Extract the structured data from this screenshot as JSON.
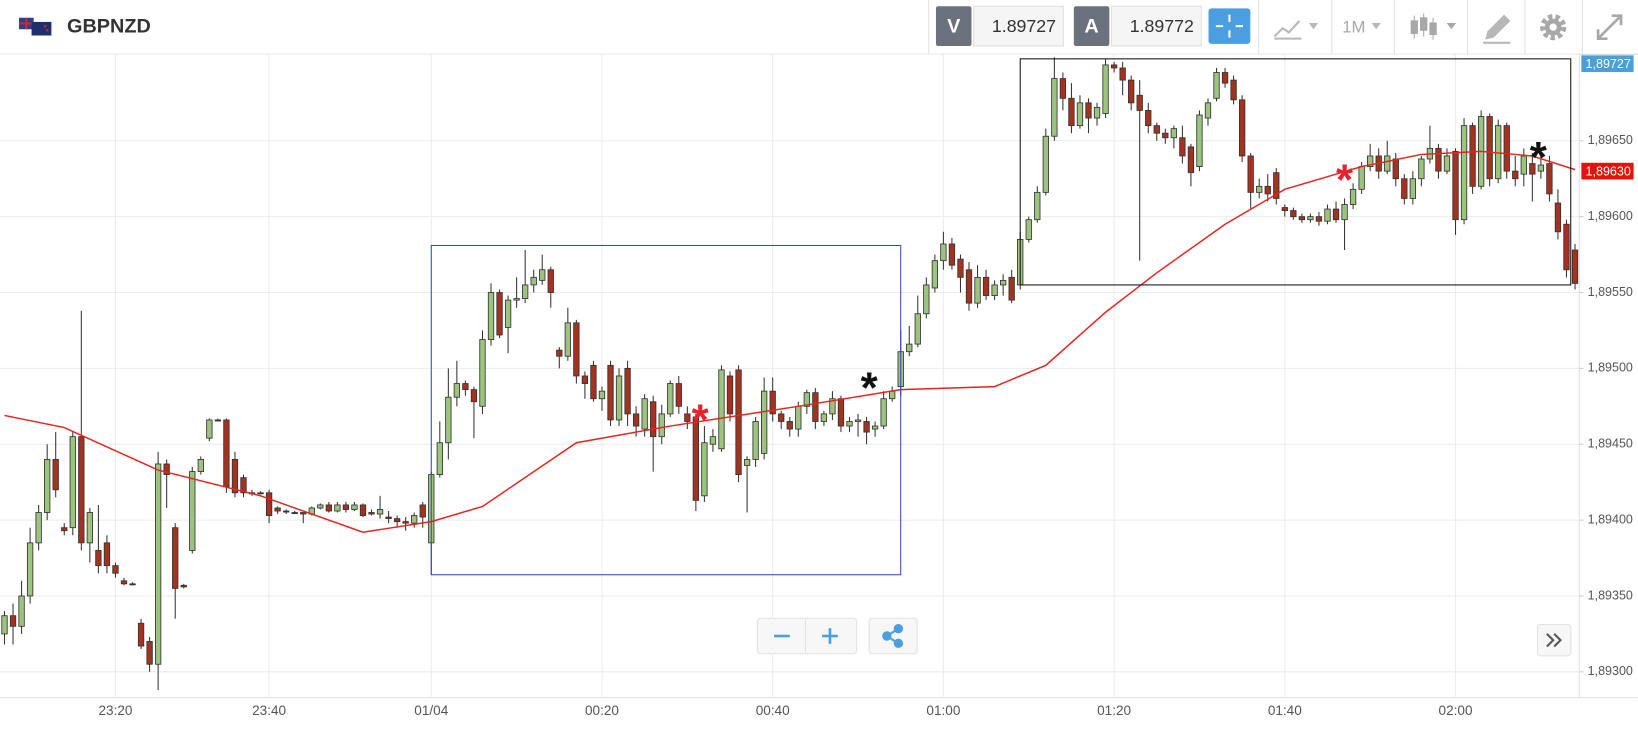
{
  "header": {
    "symbol": "GBPNZD",
    "sell_label": "V",
    "sell_price": 1.89727,
    "buy_label": "A",
    "buy_price": 1.89772,
    "timeframe": "1M"
  },
  "chart_data": {
    "type": "candlestick",
    "title": "GBPNZD",
    "xlim": [
      -0.5,
      184.5
    ],
    "xticks": [
      {
        "value": 13,
        "label": "23:20"
      },
      {
        "value": 31,
        "label": "23:40"
      },
      {
        "value": 50,
        "label": "01/04"
      },
      {
        "value": 70,
        "label": "00:20"
      },
      {
        "value": 90,
        "label": "00:40"
      },
      {
        "value": 110,
        "label": "01:00"
      },
      {
        "value": 130,
        "label": "01:20"
      },
      {
        "value": 150,
        "label": "01:40"
      },
      {
        "value": 170,
        "label": "02:00"
      }
    ],
    "ylim": [
      1.89283,
      1.89707
    ],
    "yticks": [
      {
        "value": 1.893,
        "label": "1,89300"
      },
      {
        "value": 1.8935,
        "label": "1,89350"
      },
      {
        "value": 1.894,
        "label": "1,89400"
      },
      {
        "value": 1.8945,
        "label": "1,89450"
      },
      {
        "value": 1.895,
        "label": "1,89500"
      },
      {
        "value": 1.8955,
        "label": "1,89550"
      },
      {
        "value": 1.896,
        "label": "1,89600"
      },
      {
        "value": 1.8965,
        "label": "1,89650"
      }
    ],
    "grid": true,
    "up_color": "#9cc47e",
    "down_color": "#a3321f",
    "open": [
      1.89325,
      1.89337,
      1.8933,
      1.8935,
      1.89385,
      1.89405,
      1.8944,
      1.89395,
      1.89395,
      1.89455,
      1.89385,
      1.8938,
      1.89385,
      1.8937,
      1.8936,
      1.89358,
      1.89332,
      1.8932,
      1.89305,
      1.89437,
      1.89395,
      1.89357,
      1.8938,
      1.89432,
      1.89454,
      1.89466,
      1.89466,
      1.8944,
      1.89428,
      1.89418,
      1.89418,
      1.89418,
      1.89408,
      1.89406,
      1.89405,
      1.89405,
      1.89404,
      1.89408,
      1.8941,
      1.89406,
      1.8941,
      1.89407,
      1.8941,
      1.89405,
      1.89404,
      1.89402,
      1.89401,
      1.89399,
      1.89398,
      1.8941,
      1.89385,
      1.8943,
      1.89451,
      1.89481,
      1.8949,
      1.89486,
      1.89475,
      1.89519,
      1.8955,
      1.89527,
      1.89545,
      1.89546,
      1.89555,
      1.89558,
      1.89565,
      1.89512,
      1.89508,
      1.8953,
      1.89495,
      1.89502,
      1.8948,
      1.89502,
      1.89466,
      1.895,
      1.8947,
      1.8946,
      1.89478,
      1.89455,
      1.8947,
      1.8949,
      1.8947,
      1.89468,
      1.89416,
      1.8945,
      1.89447,
      1.89495,
      1.89499,
      1.89436,
      1.8944,
      1.89444,
      1.89485,
      1.8947,
      1.89465,
      1.8946,
      1.89475,
      1.89484,
      1.89465,
      1.8947,
      1.8948,
      1.89462,
      1.89465,
      1.89465,
      1.8946,
      1.89462,
      1.8948,
      1.89488,
      1.89511,
      1.89516,
      1.89536,
      1.89553,
      1.89571,
      1.89582,
      1.89572,
      1.89565,
      1.89543,
      1.8956,
      1.89548,
      1.89555,
      1.8956,
      1.89555,
      1.89585,
      1.89598,
      1.89616,
      1.89653,
      1.89691,
      1.89678,
      1.8966,
      1.89675,
      1.89665,
      1.89668,
      1.897,
      1.89698,
      1.8969,
      1.8968,
      1.8967,
      1.8966,
      1.89655,
      1.89652,
      1.89652,
      1.89646,
      1.89633,
      1.89665,
      1.89678,
      1.89695,
      1.8969,
      1.89677,
      1.8964,
      1.89616,
      1.8962,
      1.89629,
      1.89606,
      1.89604,
      1.896,
      1.89598,
      1.896,
      1.89597,
      1.89605,
      1.89598,
      1.89608,
      1.89618,
      1.89633,
      1.8964,
      1.8963,
      1.89638,
      1.89625,
      1.89612,
      1.89625,
      1.89638,
      1.89645,
      1.8963,
      1.89643,
      1.89598,
      1.8966,
      1.8962,
      1.89666,
      1.89625,
      1.8966,
      1.8963,
      1.89628,
      1.89635,
      1.8963,
      1.89635,
      1.89609,
      1.89595,
      1.89578
    ],
    "high": [
      1.8934,
      1.89345,
      1.8936,
      1.89395,
      1.8941,
      1.8945,
      1.89458,
      1.89398,
      1.89458,
      1.89538,
      1.89408,
      1.8941,
      1.8939,
      1.89372,
      1.89362,
      1.89359,
      1.89335,
      1.89323,
      1.89445,
      1.8944,
      1.89398,
      1.89358,
      1.89435,
      1.89442,
      1.89467,
      1.89467,
      1.89467,
      1.89445,
      1.8943,
      1.8942,
      1.89419,
      1.8942,
      1.89409,
      1.89407,
      1.89406,
      1.89405,
      1.89409,
      1.89411,
      1.89412,
      1.89412,
      1.89412,
      1.89412,
      1.89411,
      1.89407,
      1.89416,
      1.89406,
      1.89403,
      1.89402,
      1.89405,
      1.89412,
      1.89432,
      1.89465,
      1.895,
      1.89505,
      1.89492,
      1.89488,
      1.89525,
      1.89556,
      1.89552,
      1.89548,
      1.8956,
      1.89578,
      1.89565,
      1.89575,
      1.89567,
      1.89514,
      1.8954,
      1.89532,
      1.89498,
      1.89505,
      1.89488,
      1.89505,
      1.895,
      1.89505,
      1.89475,
      1.89483,
      1.89482,
      1.89476,
      1.89492,
      1.89495,
      1.89475,
      1.8947,
      1.89462,
      1.8946,
      1.89502,
      1.89498,
      1.89502,
      1.89442,
      1.89468,
      1.89494,
      1.89494,
      1.89472,
      1.89468,
      1.89478,
      1.89486,
      1.89487,
      1.89472,
      1.89485,
      1.89482,
      1.89468,
      1.8947,
      1.89468,
      1.89465,
      1.89485,
      1.89488,
      1.89525,
      1.89528,
      1.89548,
      1.8956,
      1.89575,
      1.8959,
      1.89586,
      1.89575,
      1.8957,
      1.89568,
      1.89565,
      1.89558,
      1.89562,
      1.89565,
      1.8959,
      1.896,
      1.8962,
      1.89658,
      1.89705,
      1.89695,
      1.89688,
      1.8968,
      1.89678,
      1.89675,
      1.89704,
      1.89702,
      1.89702,
      1.89693,
      1.8969,
      1.89675,
      1.89662,
      1.89658,
      1.8966,
      1.8966,
      1.89648,
      1.8967,
      1.89678,
      1.89698,
      1.89698,
      1.89693,
      1.8968,
      1.89642,
      1.89625,
      1.89628,
      1.89632,
      1.89608,
      1.89606,
      1.89602,
      1.89602,
      1.89603,
      1.89608,
      1.8961,
      1.89612,
      1.89622,
      1.89636,
      1.89648,
      1.89645,
      1.8965,
      1.89642,
      1.89628,
      1.8963,
      1.8964,
      1.8966,
      1.89648,
      1.89645,
      1.89645,
      1.89665,
      1.89662,
      1.8967,
      1.89668,
      1.89664,
      1.89662,
      1.8964,
      1.89645,
      1.89642,
      1.8964,
      1.8964,
      1.89618,
      1.89598,
      1.89582
    ],
    "low": [
      1.89318,
      1.89318,
      1.89325,
      1.89345,
      1.8938,
      1.894,
      1.89415,
      1.8939,
      1.8939,
      1.8938,
      1.89372,
      1.89365,
      1.89365,
      1.89362,
      1.89357,
      1.89357,
      1.89315,
      1.893,
      1.89288,
      1.89408,
      1.89335,
      1.89355,
      1.89378,
      1.8943,
      1.89452,
      1.89465,
      1.89418,
      1.89415,
      1.89415,
      1.89416,
      1.89417,
      1.89398,
      1.89404,
      1.89404,
      1.89404,
      1.89398,
      1.89403,
      1.89407,
      1.89405,
      1.89405,
      1.89405,
      1.89406,
      1.89402,
      1.89403,
      1.89401,
      1.89398,
      1.89395,
      1.89393,
      1.89395,
      1.89395,
      1.89364,
      1.89428,
      1.8944,
      1.89475,
      1.89482,
      1.89454,
      1.8947,
      1.89515,
      1.8952,
      1.8951,
      1.8954,
      1.89543,
      1.8955,
      1.89555,
      1.8954,
      1.895,
      1.89505,
      1.8949,
      1.8948,
      1.89478,
      1.89472,
      1.89462,
      1.89462,
      1.89462,
      1.89455,
      1.89455,
      1.89432,
      1.8945,
      1.89468,
      1.8947,
      1.8946,
      1.89406,
      1.89412,
      1.89445,
      1.89445,
      1.89465,
      1.89425,
      1.89405,
      1.89435,
      1.8944,
      1.89465,
      1.8946,
      1.89455,
      1.89455,
      1.8947,
      1.8946,
      1.89462,
      1.89466,
      1.89458,
      1.89458,
      1.89455,
      1.8945,
      1.89455,
      1.8946,
      1.89478,
      1.89482,
      1.89508,
      1.89514,
      1.89533,
      1.8955,
      1.89565,
      1.89565,
      1.8955,
      1.89538,
      1.8954,
      1.89545,
      1.89545,
      1.89548,
      1.89543,
      1.89552,
      1.89583,
      1.89596,
      1.89614,
      1.8965,
      1.8967,
      1.89655,
      1.89658,
      1.89655,
      1.8966,
      1.89665,
      1.89695,
      1.8968,
      1.8967,
      1.89571,
      1.89655,
      1.8965,
      1.89648,
      1.89645,
      1.89635,
      1.8962,
      1.8963,
      1.8966,
      1.89676,
      1.89685,
      1.89674,
      1.89636,
      1.89605,
      1.89612,
      1.8961,
      1.89608,
      1.896,
      1.89598,
      1.89596,
      1.89596,
      1.89594,
      1.89595,
      1.89596,
      1.89578,
      1.89605,
      1.89615,
      1.8963,
      1.89625,
      1.89628,
      1.8962,
      1.89608,
      1.89608,
      1.8962,
      1.89635,
      1.89625,
      1.89628,
      1.89588,
      1.89595,
      1.89615,
      1.89618,
      1.8962,
      1.89622,
      1.89625,
      1.8962,
      1.8962,
      1.8961,
      1.89625,
      1.8961,
      1.89585,
      1.8956,
      1.89552
    ],
    "close": [
      1.89337,
      1.8933,
      1.8935,
      1.89385,
      1.89405,
      1.8944,
      1.8942,
      1.89393,
      1.89455,
      1.89385,
      1.89405,
      1.8937,
      1.8937,
      1.89365,
      1.89358,
      1.89358,
      1.89317,
      1.89305,
      1.89437,
      1.8943,
      1.89355,
      1.89356,
      1.89432,
      1.8944,
      1.89466,
      1.89466,
      1.89422,
      1.89418,
      1.89418,
      1.89418,
      1.89418,
      1.89403,
      1.89406,
      1.89406,
      1.89405,
      1.89404,
      1.89408,
      1.8941,
      1.89406,
      1.8941,
      1.89407,
      1.8941,
      1.89403,
      1.89404,
      1.89407,
      1.89401,
      1.89399,
      1.89398,
      1.89403,
      1.89402,
      1.8943,
      1.89451,
      1.89481,
      1.8949,
      1.89486,
      1.89478,
      1.89519,
      1.8955,
      1.89522,
      1.89545,
      1.89546,
      1.89555,
      1.8956,
      1.89565,
      1.8955,
      1.89508,
      1.8953,
      1.89495,
      1.8949,
      1.8948,
      1.89485,
      1.89466,
      1.89495,
      1.8947,
      1.89462,
      1.8948,
      1.89455,
      1.8947,
      1.8949,
      1.89475,
      1.89465,
      1.89413,
      1.89451,
      1.89455,
      1.89499,
      1.8947,
      1.8943,
      1.8944,
      1.89465,
      1.89485,
      1.8947,
      1.89465,
      1.8946,
      1.89475,
      1.89484,
      1.89465,
      1.8947,
      1.8948,
      1.89462,
      1.89465,
      1.89466,
      1.89458,
      1.89462,
      1.8948,
      1.89485,
      1.89511,
      1.89516,
      1.89536,
      1.89555,
      1.89571,
      1.89582,
      1.89568,
      1.8956,
      1.89543,
      1.8956,
      1.89548,
      1.89555,
      1.89558,
      1.89545,
      1.89585,
      1.89598,
      1.89616,
      1.89653,
      1.89691,
      1.89678,
      1.8966,
      1.89675,
      1.89665,
      1.89672,
      1.897,
      1.89698,
      1.8969,
      1.89675,
      1.8967,
      1.8966,
      1.89655,
      1.89652,
      1.89658,
      1.8964,
      1.89629,
      1.89667,
      1.89675,
      1.89695,
      1.89688,
      1.89677,
      1.8964,
      1.89616,
      1.8962,
      1.89615,
      1.89612,
      1.89604,
      1.896,
      1.89598,
      1.896,
      1.89597,
      1.89605,
      1.89598,
      1.89608,
      1.89618,
      1.89633,
      1.8964,
      1.8963,
      1.8964,
      1.89625,
      1.89612,
      1.89625,
      1.89638,
      1.89645,
      1.8963,
      1.8964,
      1.89598,
      1.8966,
      1.8962,
      1.89666,
      1.89625,
      1.8966,
      1.8963,
      1.89625,
      1.8964,
      1.89628,
      1.89634,
      1.89615,
      1.8959,
      1.89565,
      1.89556
    ],
    "moving_average": {
      "color": "#e8231f",
      "x": [
        0,
        7,
        18,
        30,
        42,
        50,
        56,
        67,
        78,
        93,
        105,
        116,
        122,
        129,
        135,
        143,
        150,
        159,
        166,
        173,
        179,
        184
      ],
      "values": [
        1.89469,
        1.89461,
        1.89433,
        1.89416,
        1.89392,
        1.89399,
        1.89409,
        1.89451,
        1.89462,
        1.89475,
        1.89486,
        1.89488,
        1.89502,
        1.89537,
        1.89563,
        1.89595,
        1.89618,
        1.89633,
        1.89641,
        1.89643,
        1.8964,
        1.89631
      ]
    },
    "rectangles": [
      {
        "x": [
          50,
          105
        ],
        "y": [
          1.89364,
          1.89581
        ],
        "color": "#3a45c8"
      },
      {
        "x": [
          119,
          183.5
        ],
        "y": [
          1.89555,
          1.89704
        ],
        "color": "#111111"
      }
    ],
    "annotations": [
      {
        "text": "*",
        "x": 81.5,
        "y": 1.89471,
        "color": "#e8212c"
      },
      {
        "text": "*",
        "x": 101.3,
        "y": 1.89492,
        "color": "#111111"
      },
      {
        "text": "*",
        "x": 157,
        "y": 1.89629,
        "color": "#e8212c"
      },
      {
        "text": "*",
        "x": 179.7,
        "y": 1.89644,
        "color": "#111111"
      }
    ],
    "price_markers": [
      {
        "value": 1.89727,
        "label": "1,89727",
        "color": "#4a9fd8"
      },
      {
        "value": 1.8963,
        "label": "1,89630",
        "color": "#e8120c"
      }
    ]
  }
}
